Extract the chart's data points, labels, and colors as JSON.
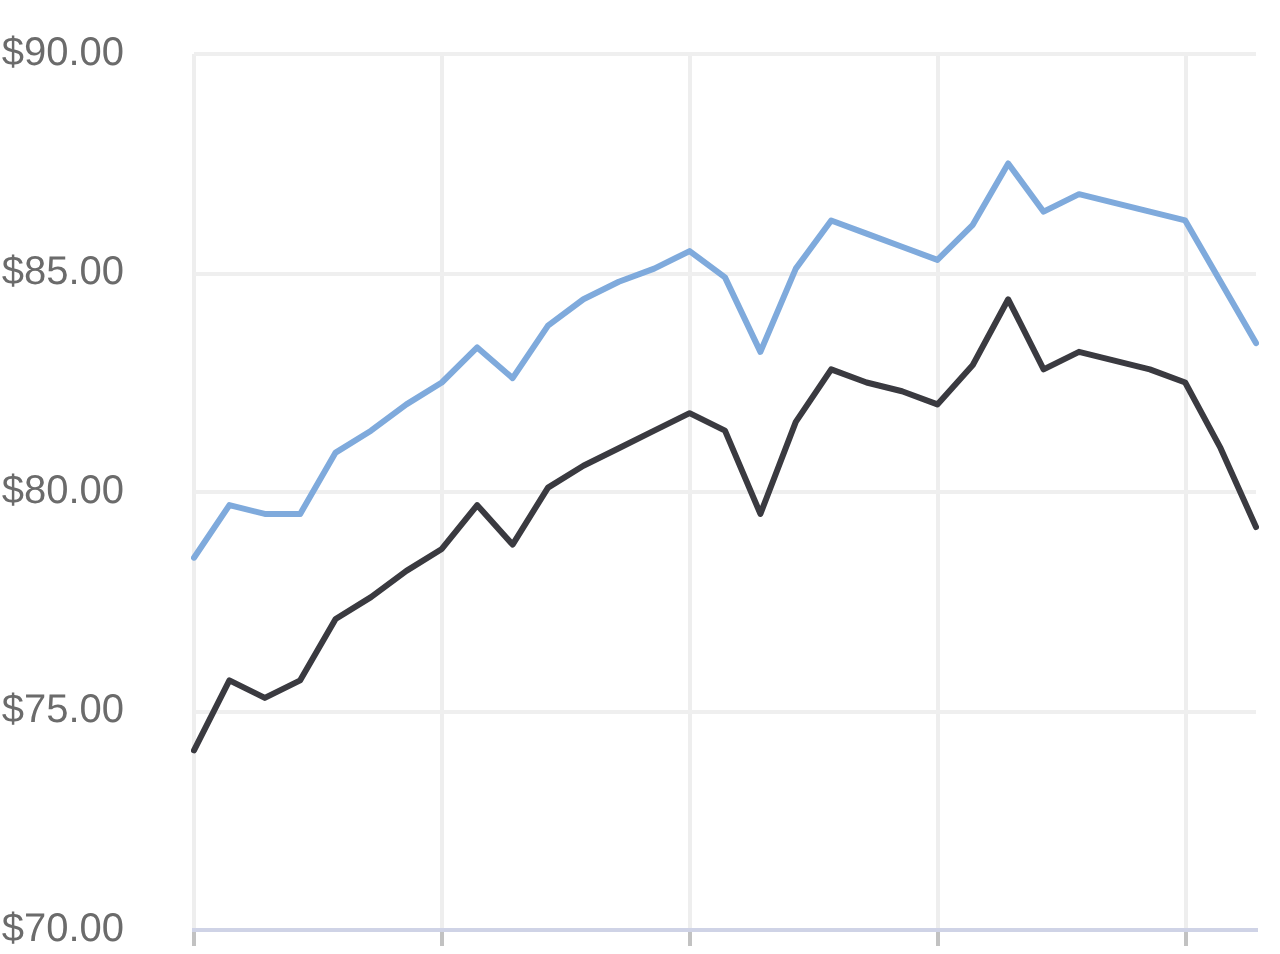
{
  "chart_data": {
    "type": "line",
    "categories": [
      null,
      null,
      null,
      null,
      null,
      null,
      null,
      null,
      null,
      null,
      null,
      null,
      null,
      null,
      null,
      null,
      null,
      null,
      null,
      null,
      null,
      null,
      null,
      null,
      null,
      null,
      null,
      null,
      null,
      null,
      null
    ],
    "series": [
      {
        "color": "#7faadc",
        "values": [
          78.5,
          79.7,
          79.5,
          79.5,
          80.9,
          81.4,
          82.0,
          82.5,
          83.3,
          82.6,
          83.8,
          84.4,
          84.8,
          85.1,
          85.5,
          84.9,
          83.2,
          85.1,
          86.2,
          85.9,
          85.6,
          85.3,
          86.1,
          87.5,
          86.4,
          86.8,
          86.6,
          86.4,
          86.2,
          84.8,
          83.4
        ]
      },
      {
        "color": "#3a3a40",
        "values": [
          74.1,
          75.7,
          75.3,
          75.7,
          77.1,
          77.6,
          78.2,
          78.7,
          79.7,
          78.8,
          80.1,
          80.6,
          81.0,
          81.4,
          81.8,
          81.4,
          79.5,
          81.6,
          82.8,
          82.5,
          82.3,
          82.0,
          82.9,
          84.4,
          82.8,
          83.2,
          83.0,
          82.8,
          82.5,
          81.0,
          79.2
        ]
      }
    ],
    "ylim": [
      70,
      90
    ],
    "yticks": [
      {
        "value": 70,
        "label": "$70.00"
      },
      {
        "value": 75,
        "label": "$75.00"
      },
      {
        "value": 80,
        "label": "$80.00"
      },
      {
        "value": 85,
        "label": "$85.00"
      },
      {
        "value": 90,
        "label": "$90.00"
      }
    ],
    "grid": true,
    "tick_labels": "y",
    "marker": "none",
    "line_style": "solid"
  }
}
